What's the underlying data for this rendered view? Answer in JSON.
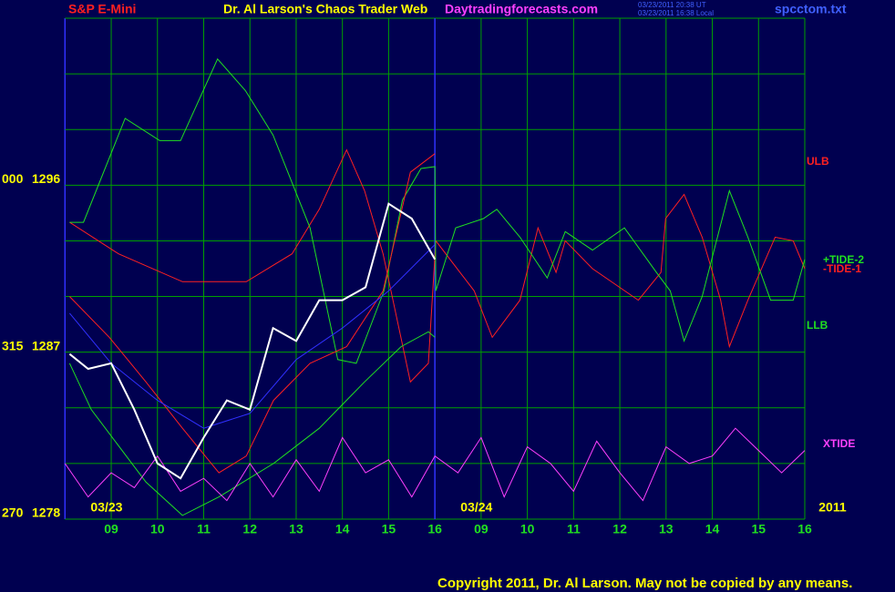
{
  "chart_data": {
    "type": "line",
    "header": {
      "symbol": "S&P E-Mini",
      "title": "Dr. Al Larson's Chaos Trader Web",
      "site": "Daytradingforecasts.com",
      "stamp_ut": "03/23/2011 20:38 UT",
      "stamp_local": "03/23/2011 16:38 Local",
      "file": "spcctom.txt"
    },
    "footer": "Copyright 2011, Dr. Al Larson. May not be copied by any means.",
    "labels": {
      "ulb": "ULB",
      "llb": "LLB",
      "tide2": "+TIDE-2",
      "tide1": "-TIDE-1",
      "xtide": "XTIDE"
    },
    "xlim": [
      0,
      16
    ],
    "ylim": [
      1278,
      1305
    ],
    "xticks": [
      {
        "value": 1,
        "label": "09"
      },
      {
        "value": 2,
        "label": "10"
      },
      {
        "value": 3,
        "label": "11"
      },
      {
        "value": 4,
        "label": "12"
      },
      {
        "value": 5,
        "label": "13"
      },
      {
        "value": 6,
        "label": "14"
      },
      {
        "value": 7,
        "label": "15"
      },
      {
        "value": 8,
        "label": "16"
      },
      {
        "value": 9,
        "label": "09"
      },
      {
        "value": 10,
        "label": "10"
      },
      {
        "value": 11,
        "label": "11"
      },
      {
        "value": 12,
        "label": "12"
      },
      {
        "value": 13,
        "label": "13"
      },
      {
        "value": 14,
        "label": "14"
      },
      {
        "value": 15,
        "label": "15"
      },
      {
        "value": 16,
        "label": "16"
      }
    ],
    "yticks": [
      1278,
      1287,
      1296
    ],
    "left_labels": [
      "270",
      "315",
      "000"
    ],
    "ygrid": [
      1278,
      1281,
      1284,
      1287,
      1290,
      1293,
      1296,
      1299,
      1302,
      1305
    ],
    "date_labels": [
      {
        "text": "03/23",
        "x": 0.9
      },
      {
        "text": "03/24",
        "x": 8.9
      },
      {
        "text": "2011",
        "x": 16.6
      }
    ],
    "now_x": 8,
    "series": [
      {
        "color": "#ff2020",
        "x": [
          0.1,
          1.16,
          2.54,
          3.92,
          4.91,
          5.5,
          6.09,
          6.48,
          6.88,
          7.47,
          7.86,
          8.02,
          8.85,
          9.24,
          9.84,
          10.23,
          10.62,
          10.82,
          11.41,
          12.4,
          12.89,
          12.99,
          13.39,
          13.78,
          14.18,
          14.37,
          14.77,
          15.36,
          15.75,
          16.0
        ],
        "values": [
          1294.0,
          1292.3,
          1290.8,
          1290.8,
          1292.3,
          1294.7,
          1297.9,
          1295.7,
          1292.3,
          1285.4,
          1286.4,
          1293.0,
          1290.3,
          1287.8,
          1289.8,
          1293.7,
          1291.3,
          1293.0,
          1291.5,
          1289.8,
          1291.3,
          1294.2,
          1295.5,
          1293.2,
          1289.8,
          1287.3,
          1289.8,
          1293.2,
          1293.0,
          1291.5
        ]
      },
      {
        "color": "#20e020",
        "x": [
          0.1,
          0.4,
          1.3,
          2.05,
          2.5,
          3.3,
          3.9,
          4.5,
          5.3,
          5.9,
          6.3,
          6.9,
          7.3,
          7.7,
          8.0,
          8.02,
          8.45,
          9.05,
          9.34,
          9.84,
          10.43,
          10.82,
          11.41,
          12.1,
          12.79,
          13.09,
          13.39,
          13.78,
          14.37,
          14.77,
          15.26,
          15.75,
          16.0
        ],
        "values": [
          1294.0,
          1294.0,
          1299.6,
          1298.4,
          1298.4,
          1302.8,
          1301.1,
          1298.7,
          1293.7,
          1286.6,
          1286.4,
          1290.3,
          1295.2,
          1296.9,
          1297.0,
          1290.3,
          1293.7,
          1294.2,
          1294.7,
          1293.2,
          1291.0,
          1293.5,
          1292.5,
          1293.7,
          1291.3,
          1290.3,
          1287.6,
          1290.0,
          1295.7,
          1293.2,
          1289.8,
          1289.8,
          1292.0
        ]
      },
      {
        "color": "#ff2020",
        "x": [
          0.1,
          0.96,
          1.75,
          2.54,
          3.33,
          3.92,
          4.51,
          5.3,
          6.09,
          6.88,
          7.47,
          8.0
        ],
        "values": [
          1290.0,
          1287.8,
          1285.4,
          1282.9,
          1280.5,
          1281.4,
          1284.4,
          1286.4,
          1287.3,
          1290.3,
          1296.7,
          1297.7
        ]
      },
      {
        "color": "#20e020",
        "x": [
          0.1,
          0.57,
          1.75,
          2.54,
          3.33,
          4.51,
          5.5,
          6.48,
          7.27,
          7.86,
          8.0
        ],
        "values": [
          1286.4,
          1283.9,
          1280.0,
          1278.2,
          1279.2,
          1281.0,
          1282.9,
          1285.4,
          1287.3,
          1288.1,
          1287.8
        ]
      },
      {
        "color": "#ff40ff",
        "x": [
          0,
          0.5,
          1,
          1.5,
          2,
          2.5,
          3,
          3.5,
          4,
          4.5,
          5,
          5.5,
          6,
          6.5,
          7,
          7.5,
          8,
          8.5,
          9,
          9.5,
          10,
          10.5,
          11,
          11.5,
          12,
          12.5,
          13,
          13.5,
          14,
          14.5,
          15,
          15.5,
          16
        ],
        "values": [
          1281.0,
          1279.2,
          1280.5,
          1279.7,
          1281.4,
          1279.5,
          1280.2,
          1279.0,
          1281.0,
          1279.2,
          1281.2,
          1279.5,
          1282.4,
          1280.5,
          1281.2,
          1279.2,
          1281.4,
          1280.5,
          1282.4,
          1279.2,
          1281.9,
          1281.0,
          1279.5,
          1282.2,
          1280.5,
          1279.0,
          1281.9,
          1281.0,
          1281.4,
          1282.9,
          1281.7,
          1280.5,
          1281.7
        ]
      },
      {
        "color": "#3030ff",
        "x": [
          0.1,
          1,
          2,
          3,
          4,
          5,
          6,
          7,
          8
        ],
        "values": [
          1289.1,
          1286.4,
          1284.4,
          1282.9,
          1283.7,
          1286.6,
          1288.3,
          1290.3,
          1292.8
        ]
      },
      {
        "color": "#ffffff",
        "x": [
          0.1,
          0.5,
          1,
          1.5,
          2,
          2.5,
          3,
          3.5,
          4,
          4.5,
          5,
          5.5,
          6,
          6.5,
          7,
          7.5,
          8
        ],
        "values": [
          1286.9,
          1286.1,
          1286.4,
          1283.9,
          1281.0,
          1280.2,
          1282.4,
          1284.4,
          1283.9,
          1288.3,
          1287.6,
          1289.8,
          1289.8,
          1290.5,
          1295.0,
          1294.2,
          1292.0
        ]
      }
    ]
  }
}
